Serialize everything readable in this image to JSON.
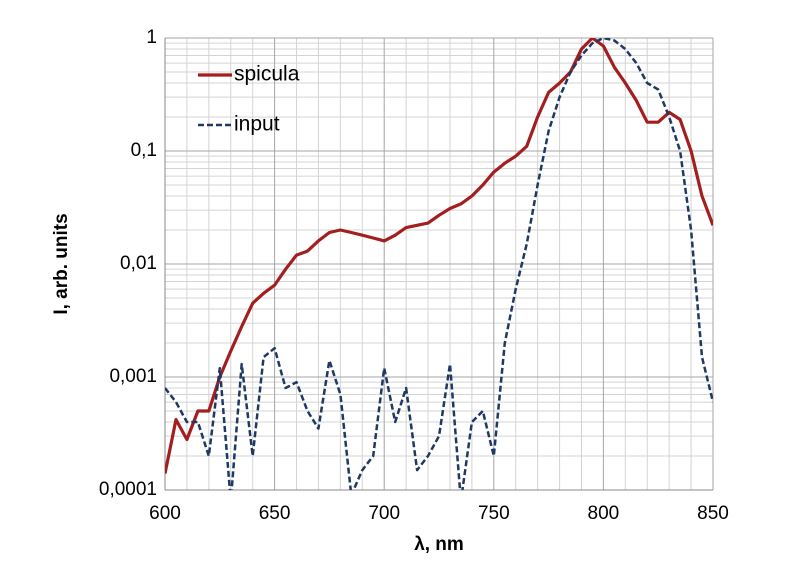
{
  "chart_data": {
    "type": "line",
    "log_y": true,
    "grid": true,
    "minor_grid": true,
    "legend": "upper left",
    "xlabel": "λ, nm",
    "ylabel": "I, arb. units",
    "xlim": [
      600,
      850
    ],
    "xticks": [
      600,
      650,
      700,
      750,
      800,
      850
    ],
    "ylim": [
      0.0001,
      1
    ],
    "yticks": [
      {
        "value": 0.0001,
        "label": "0,0001"
      },
      {
        "value": 0.001,
        "label": "0,001"
      },
      {
        "value": 0.01,
        "label": "0,01"
      },
      {
        "value": 0.1,
        "label": "0,1"
      },
      1
    ],
    "x": [
      600,
      605,
      610,
      615,
      620,
      625,
      630,
      635,
      640,
      645,
      650,
      655,
      660,
      665,
      670,
      675,
      680,
      685,
      690,
      695,
      700,
      705,
      710,
      715,
      720,
      725,
      730,
      735,
      740,
      745,
      750,
      755,
      760,
      765,
      770,
      775,
      780,
      785,
      790,
      795,
      800,
      805,
      810,
      815,
      820,
      825,
      830,
      835,
      840,
      845,
      850
    ],
    "series": [
      {
        "name": "spicula",
        "color": "#a31f1f",
        "line_style": "solid",
        "values": [
          0.00014,
          0.00042,
          0.00028,
          0.0005,
          0.0005,
          0.001,
          0.0017,
          0.0028,
          0.0045,
          0.0055,
          0.0065,
          0.009,
          0.012,
          0.013,
          0.016,
          0.019,
          0.02,
          0.019,
          0.018,
          0.017,
          0.016,
          0.018,
          0.021,
          0.022,
          0.023,
          0.027,
          0.031,
          0.034,
          0.04,
          0.05,
          0.065,
          0.078,
          0.09,
          0.11,
          0.2,
          0.33,
          0.4,
          0.5,
          0.8,
          1.0,
          0.85,
          0.55,
          0.4,
          0.28,
          0.18,
          0.18,
          0.22,
          0.19,
          0.1,
          0.04,
          0.022
        ]
      },
      {
        "name": "input",
        "color": "#1f3864",
        "line_style": "dashed",
        "values": [
          0.0008,
          0.0006,
          0.0004,
          0.0004,
          0.0002,
          0.0012,
          8e-05,
          0.0013,
          0.0002,
          0.0015,
          0.0018,
          0.0008,
          0.0009,
          0.0005,
          0.00035,
          0.0014,
          0.0007,
          9e-05,
          0.00015,
          0.0002,
          0.0012,
          0.0004,
          0.0008,
          0.00015,
          0.0002,
          0.0003,
          0.0013,
          8e-05,
          0.0004,
          0.0005,
          0.0002,
          0.002,
          0.006,
          0.015,
          0.05,
          0.15,
          0.3,
          0.5,
          0.7,
          0.9,
          1.0,
          0.95,
          0.8,
          0.6,
          0.4,
          0.35,
          0.2,
          0.1,
          0.02,
          0.0015,
          0.0006
        ]
      }
    ]
  }
}
